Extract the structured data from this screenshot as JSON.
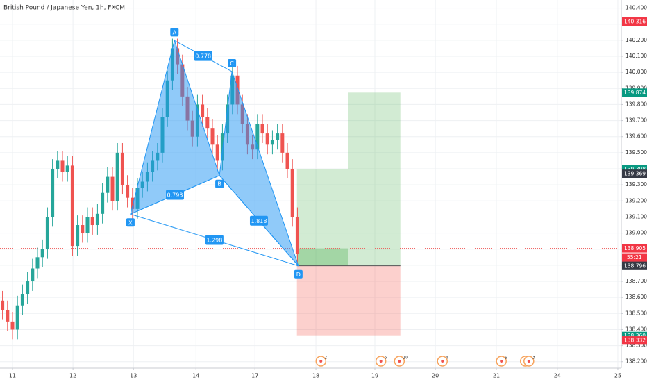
{
  "chart_data": {
    "type": "candlestick",
    "title": "British Pound / Japanese Yen, 1h, FXCM",
    "up_color": "#26a69a",
    "down_color": "#ef5350",
    "xlim": [
      0,
      124.3
    ],
    "ylim": [
      138.16,
      140.45
    ],
    "xticks": [
      {
        "value": 2.5,
        "label": "11"
      },
      {
        "value": 14.6,
        "label": "12"
      },
      {
        "value": 26.7,
        "label": "13"
      },
      {
        "value": 39.2,
        "label": "14"
      },
      {
        "value": 51.0,
        "label": "17"
      },
      {
        "value": 63.2,
        "label": "18"
      },
      {
        "value": 75.0,
        "label": "19"
      },
      {
        "value": 87.1,
        "label": "20"
      },
      {
        "value": 99.3,
        "label": "21"
      },
      {
        "value": 111.5,
        "label": "24"
      },
      {
        "value": 123.6,
        "label": "25"
      }
    ],
    "yticks": [
      {
        "value": 138.2,
        "label": "138.200"
      },
      {
        "value": 138.3,
        "label": "138.300"
      },
      {
        "value": 138.4,
        "label": "138.400"
      },
      {
        "value": 138.5,
        "label": "138.500"
      },
      {
        "value": 138.6,
        "label": "138.600"
      },
      {
        "value": 138.7,
        "label": "138.700"
      },
      {
        "value": 138.8,
        "label": "138.800"
      },
      {
        "value": 138.9,
        "label": "138.900"
      },
      {
        "value": 139.0,
        "label": "139.000"
      },
      {
        "value": 139.1,
        "label": "139.100"
      },
      {
        "value": 139.2,
        "label": "139.200"
      },
      {
        "value": 139.3,
        "label": "139.300"
      },
      {
        "value": 139.4,
        "label": "139.400"
      },
      {
        "value": 139.5,
        "label": "139.500"
      },
      {
        "value": 139.6,
        "label": "139.600"
      },
      {
        "value": 139.7,
        "label": "139.700"
      },
      {
        "value": 139.8,
        "label": "139.800"
      },
      {
        "value": 139.9,
        "label": "139.900"
      },
      {
        "value": 140.0,
        "label": "140.000"
      },
      {
        "value": 140.1,
        "label": "140.100"
      },
      {
        "value": 140.2,
        "label": "140.200"
      },
      {
        "value": 140.3,
        "label": "140.300"
      },
      {
        "value": 140.4,
        "label": "140.400"
      }
    ],
    "grid": true,
    "open": [
      138.58,
      138.52,
      138.45,
      138.4,
      138.55,
      138.62,
      138.7,
      138.78,
      138.85,
      138.9,
      139.1,
      139.4,
      139.45,
      139.38,
      139.42,
      138.92,
      139.05,
      139.0,
      139.1,
      139.05,
      139.12,
      139.25,
      139.35,
      139.2,
      139.5,
      139.3,
      139.22,
      139.15,
      139.28,
      139.32,
      139.38,
      139.45,
      139.5,
      139.72,
      139.95,
      140.15,
      140.05,
      139.85,
      139.7,
      139.6,
      139.8,
      139.72,
      139.65,
      139.55,
      139.45,
      139.62,
      139.8,
      139.98,
      139.8,
      139.68,
      139.55,
      139.52,
      139.68,
      139.62,
      139.55,
      139.58,
      139.62,
      139.5,
      139.4,
      139.1
    ],
    "high": [
      138.64,
      138.58,
      138.51,
      138.61,
      138.68,
      138.76,
      138.84,
      138.91,
      138.96,
      139.16,
      139.46,
      139.51,
      139.51,
      139.48,
      139.48,
      139.11,
      139.11,
      139.16,
      139.16,
      139.18,
      139.31,
      139.41,
      139.41,
      139.56,
      139.56,
      139.36,
      139.28,
      139.34,
      139.38,
      139.44,
      139.51,
      139.56,
      139.78,
      140.01,
      140.21,
      140.21,
      140.11,
      139.91,
      139.76,
      139.86,
      139.86,
      139.78,
      139.71,
      139.61,
      139.68,
      139.86,
      140.04,
      140.04,
      139.86,
      139.74,
      139.61,
      139.74,
      139.74,
      139.68,
      139.64,
      139.68,
      139.68,
      139.56,
      139.46,
      139.16
    ],
    "low": [
      138.46,
      138.39,
      138.34,
      138.34,
      138.49,
      138.56,
      138.64,
      138.72,
      138.79,
      138.84,
      139.04,
      139.34,
      139.32,
      139.32,
      138.86,
      138.86,
      138.94,
      138.94,
      138.99,
      138.99,
      139.06,
      139.19,
      139.14,
      139.14,
      139.24,
      139.16,
      139.09,
      139.09,
      139.22,
      139.26,
      139.32,
      139.39,
      139.44,
      139.66,
      139.89,
      139.99,
      139.79,
      139.64,
      139.54,
      139.54,
      139.66,
      139.59,
      139.49,
      139.39,
      139.39,
      139.56,
      139.74,
      139.74,
      139.62,
      139.49,
      139.46,
      139.46,
      139.56,
      139.49,
      139.49,
      139.52,
      139.44,
      139.34,
      139.04,
      138.81
    ],
    "close": [
      138.52,
      138.45,
      138.4,
      138.55,
      138.62,
      138.7,
      138.78,
      138.85,
      138.9,
      139.1,
      139.4,
      139.45,
      139.38,
      139.42,
      138.92,
      139.05,
      139.0,
      139.1,
      139.05,
      139.12,
      139.25,
      139.35,
      139.2,
      139.5,
      139.3,
      139.22,
      139.15,
      139.28,
      139.32,
      139.38,
      139.45,
      139.5,
      139.72,
      139.95,
      140.15,
      140.05,
      139.85,
      139.7,
      139.6,
      139.8,
      139.72,
      139.65,
      139.55,
      139.45,
      139.62,
      139.8,
      139.98,
      139.8,
      139.68,
      139.55,
      139.52,
      139.68,
      139.62,
      139.55,
      139.58,
      139.62,
      139.5,
      139.4,
      139.1,
      138.87
    ],
    "pattern": {
      "color": "#2196f3",
      "points": [
        {
          "label": "X",
          "x": 26.1,
          "y": 139.118
        },
        {
          "label": "A",
          "x": 34.9,
          "y": 140.198
        },
        {
          "label": "B",
          "x": 43.9,
          "y": 139.358
        },
        {
          "label": "C",
          "x": 46.4,
          "y": 140.005
        },
        {
          "label": "D",
          "x": 59.7,
          "y": 138.796
        }
      ],
      "ratios": [
        0.778,
        0.793,
        1.818,
        1.298
      ]
    },
    "position": {
      "x_start": 59.4,
      "x_mid": 69.7,
      "x_end": 80.1,
      "entry": 138.797,
      "current": 138.905,
      "target1": 139.398,
      "target2": 139.874,
      "stop": 138.36
    },
    "price_badges": [
      {
        "value": 140.316,
        "label": "140.316",
        "color": "#f23645"
      },
      {
        "value": 139.874,
        "label": "139.874",
        "color": "#089981"
      },
      {
        "value": 139.398,
        "label": "139.398",
        "color": "#089981"
      },
      {
        "value": 139.369,
        "label": "139.369",
        "color": "#363a45"
      },
      {
        "value": 138.905,
        "label": "138.905",
        "color": "#f23645"
      },
      {
        "value": 138.797,
        "label": "138.797",
        "color": "#363a45"
      },
      {
        "value": 138.796,
        "label": "138.796",
        "color": "#363a45"
      },
      {
        "value": 138.36,
        "label": "138.360",
        "color": "#089981"
      },
      {
        "value": 138.332,
        "label": "138.332",
        "color": "#f23645"
      },
      {
        "value": 138.332,
        "label": "138.332",
        "color": "#f23645"
      }
    ],
    "countdown": "55:21",
    "events": [
      {
        "x": 64.2,
        "label": "2"
      },
      {
        "x": 76.2,
        "label": "5"
      },
      {
        "x": 79.9,
        "label": "10"
      },
      {
        "x": 88.5,
        "label": "4"
      },
      {
        "x": 100.3,
        "label": "9"
      },
      {
        "x": 105.1,
        "label": "7"
      },
      {
        "x": 105.8,
        "label": "3"
      }
    ]
  }
}
